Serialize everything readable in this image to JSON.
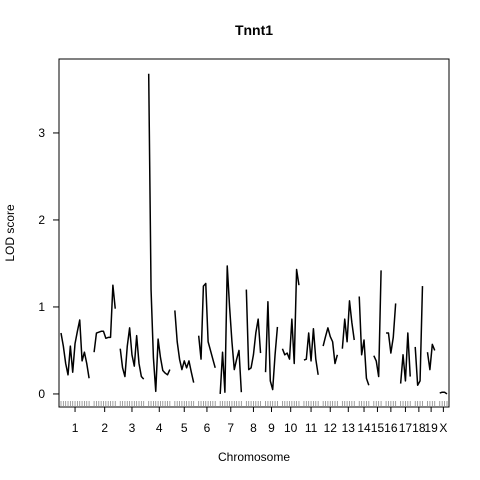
{
  "chart_data": {
    "type": "line",
    "title": "Tnnt1",
    "xlabel": "Chromosome",
    "ylabel": "LOD score",
    "ylim": [
      -0.15,
      3.85
    ],
    "y_ticks": [
      0,
      1,
      2,
      3
    ],
    "grid": false,
    "chromosomes": [
      {
        "name": "1",
        "values": [
          0.7,
          0.55,
          0.35,
          0.22,
          0.55,
          0.25,
          0.58,
          0.72,
          0.85,
          0.38,
          0.48,
          0.35,
          0.18
        ]
      },
      {
        "name": "2",
        "values": [
          0.48,
          0.7,
          0.71,
          0.72,
          0.72,
          0.64,
          0.65,
          0.65,
          1.25,
          0.98
        ]
      },
      {
        "name": "3",
        "values": [
          0.52,
          0.3,
          0.2,
          0.55,
          0.76,
          0.45,
          0.32,
          0.67,
          0.35,
          0.2,
          0.17
        ]
      },
      {
        "name": "4",
        "values": [
          3.68,
          1.2,
          0.42,
          0.03,
          0.63,
          0.42,
          0.27,
          0.24,
          0.22,
          0.28
        ]
      },
      {
        "name": "5",
        "values": [
          0.96,
          0.6,
          0.4,
          0.28,
          0.38,
          0.3,
          0.38,
          0.25,
          0.13
        ]
      },
      {
        "name": "6",
        "values": [
          0.67,
          0.4,
          1.24,
          1.27,
          0.6,
          0.5,
          0.4,
          0.3
        ]
      },
      {
        "name": "7",
        "values": [
          0.0,
          0.48,
          0.02,
          1.47,
          1.0,
          0.6,
          0.28,
          0.4,
          0.5,
          0.02
        ]
      },
      {
        "name": "8",
        "values": [
          1.2,
          0.28,
          0.3,
          0.45,
          0.7,
          0.86,
          0.47
        ]
      },
      {
        "name": "9",
        "values": [
          0.25,
          1.06,
          0.15,
          0.05,
          0.45,
          0.77
        ]
      },
      {
        "name": "10",
        "values": [
          0.52,
          0.45,
          0.47,
          0.4,
          0.86,
          0.35,
          1.43,
          1.25
        ]
      },
      {
        "name": "11",
        "values": [
          0.39,
          0.4,
          0.7,
          0.38,
          0.75,
          0.4,
          0.22
        ]
      },
      {
        "name": "12",
        "values": [
          0.55,
          0.66,
          0.76,
          0.66,
          0.6,
          0.35,
          0.45
        ]
      },
      {
        "name": "13",
        "values": [
          0.52,
          0.86,
          0.6,
          1.07,
          0.82,
          0.62
        ]
      },
      {
        "name": "14",
        "values": [
          1.12,
          0.45,
          0.62,
          0.18,
          0.1
        ]
      },
      {
        "name": "15",
        "values": [
          0.44,
          0.38,
          0.2,
          1.42
        ]
      },
      {
        "name": "16",
        "values": [
          0.7,
          0.7,
          0.47,
          0.65,
          1.04
        ]
      },
      {
        "name": "17",
        "values": [
          0.12,
          0.45,
          0.15,
          0.7,
          0.2
        ]
      },
      {
        "name": "18",
        "values": [
          0.54,
          0.1,
          0.15,
          1.24
        ]
      },
      {
        "name": "19",
        "values": [
          0.48,
          0.28,
          0.57,
          0.5
        ]
      },
      {
        "name": "X",
        "values": [
          0.01,
          0.02,
          0.02,
          0.0
        ]
      }
    ]
  }
}
